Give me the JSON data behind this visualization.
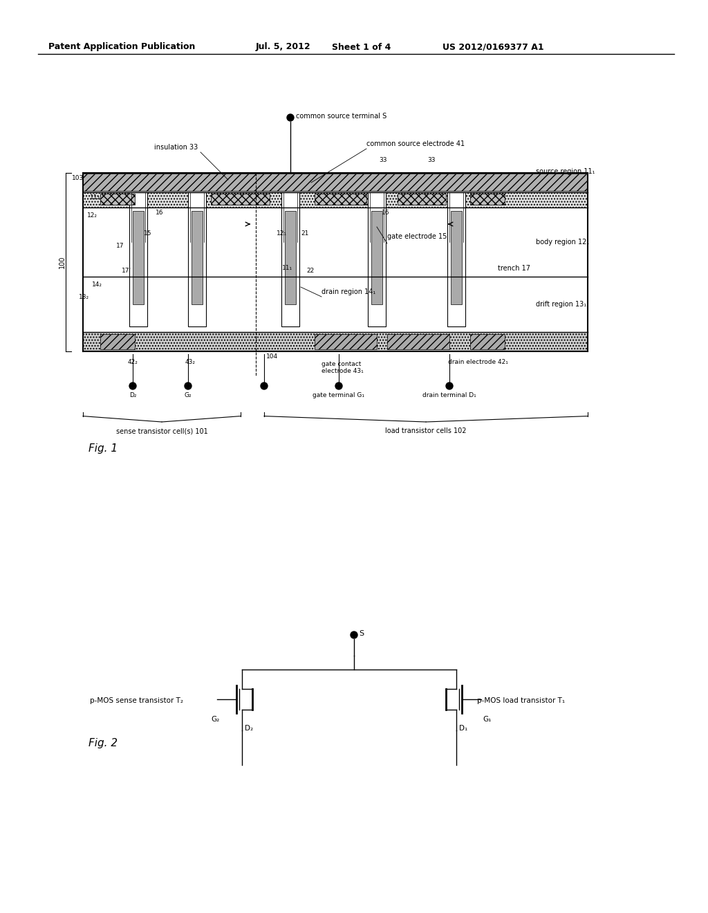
{
  "title_text": "Patent Application Publication",
  "date_text": "Jul. 5, 2012",
  "sheet_text": "Sheet 1 of 4",
  "patent_text": "US 2012/0169377 A1",
  "fig1_label": "Fig. 1",
  "fig2_label": "Fig. 2",
  "background_color": "#ffffff",
  "line_color": "#000000",
  "font_size_header": 9,
  "font_size_label": 7,
  "font_size_small": 6
}
